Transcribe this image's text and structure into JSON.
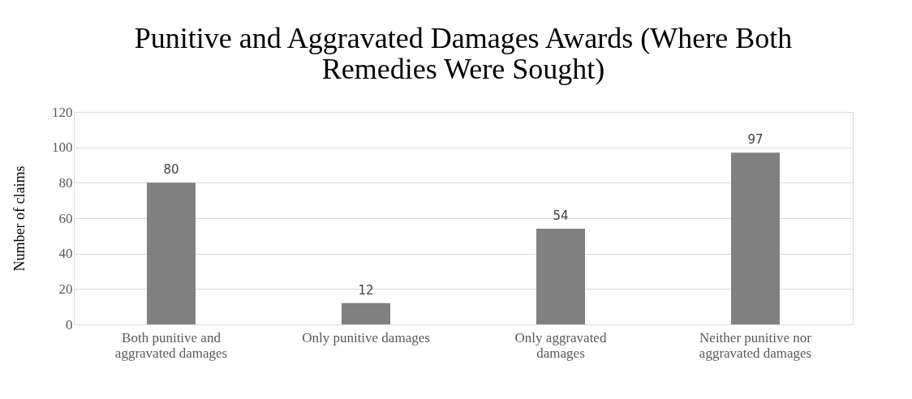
{
  "chart_data": {
    "type": "bar",
    "title": "Punitive and Aggravated Damages Awards (Where Both Remedies Were Sought)",
    "ylabel": "Number of claims",
    "categories": [
      "Both punitive and aggravated damages",
      "Only punitive damages",
      "Only aggravated damages",
      "Neither punitive nor aggravated damages"
    ],
    "values": [
      80,
      12,
      54,
      97
    ],
    "color": "#808080",
    "ylim": [
      0,
      120
    ],
    "yticks": [
      0,
      20,
      40,
      60,
      80,
      100,
      120
    ],
    "grid": "y",
    "data_labels": true
  }
}
